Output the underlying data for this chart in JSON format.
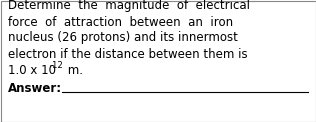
{
  "line1": "Determine  the  magnitude  of  electrical",
  "line2": "force  of  attraction  between  an  iron",
  "line3": "nucleus (26 protons) and its innermost",
  "line4": "electron if the distance between them is",
  "line5_pre": "1.0 x 10",
  "line5_sup": "-12",
  "line5_post": " m.",
  "line6": "Answer:",
  "background_color": "#ffffff",
  "text_color": "#000000",
  "border_color": "#888888",
  "font_size": 8.5,
  "answer_line_color": "#000000"
}
